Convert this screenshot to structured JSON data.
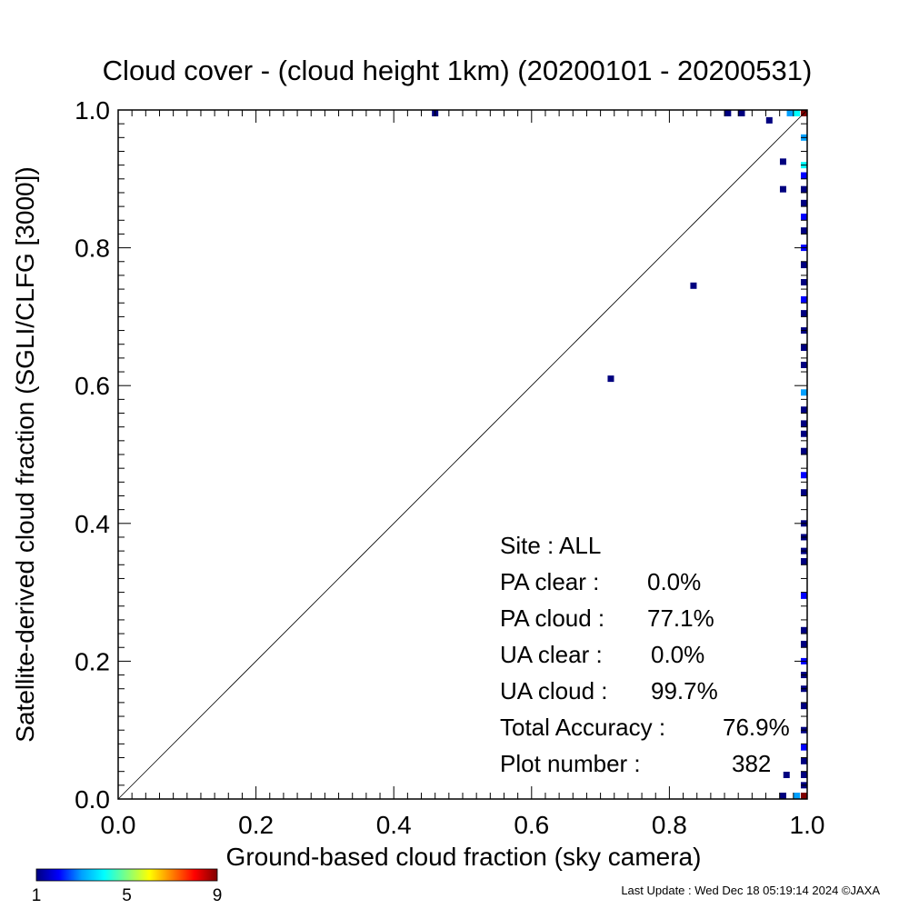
{
  "chart_data": {
    "type": "scatter",
    "title": "Cloud cover - (cloud height 1km)  (20200101 - 20200531)",
    "xlabel": "Ground-based cloud fraction (sky camera)",
    "ylabel": "Satellite-derived cloud fraction (SGLI/CLFG [3000])",
    "xlim": [
      0.0,
      1.0
    ],
    "ylim": [
      0.0,
      1.0
    ],
    "x_ticks": [
      "0.0",
      "0.2",
      "0.4",
      "0.6",
      "0.8",
      "1.0"
    ],
    "y_ticks": [
      "0.0",
      "0.2",
      "0.4",
      "0.6",
      "0.8",
      "1.0"
    ],
    "grid": false,
    "one_to_one_line": true,
    "colorbar": {
      "min": 1,
      "max": 9,
      "tick_labels": [
        "1",
        "5",
        "9"
      ],
      "colors": [
        "#00007f",
        "#0000ff",
        "#00a0ff",
        "#00ffff",
        "#80ff80",
        "#ffff00",
        "#ff8000",
        "#ff0000",
        "#7f0000"
      ]
    },
    "points": [
      {
        "x": 0.46,
        "y": 1.0,
        "count": 1
      },
      {
        "x": 0.885,
        "y": 1.0,
        "count": 1
      },
      {
        "x": 0.905,
        "y": 1.0,
        "count": 1
      },
      {
        "x": 0.945,
        "y": 0.985,
        "count": 1
      },
      {
        "x": 0.965,
        "y": 0.925,
        "count": 1
      },
      {
        "x": 0.965,
        "y": 0.885,
        "count": 1
      },
      {
        "x": 0.835,
        "y": 0.745,
        "count": 1
      },
      {
        "x": 0.715,
        "y": 0.61,
        "count": 1
      },
      {
        "x": 0.975,
        "y": 1.0,
        "count": 3
      },
      {
        "x": 0.985,
        "y": 1.0,
        "count": 4
      },
      {
        "x": 0.97,
        "y": 0.035,
        "count": 1
      },
      {
        "x": 0.965,
        "y": 0.0,
        "count": 1
      },
      {
        "x": 0.985,
        "y": 0.0,
        "count": 3
      },
      {
        "x": 1.0,
        "y": 1.0,
        "count": 9
      },
      {
        "x": 1.0,
        "y": 0.0,
        "count": 9
      },
      {
        "x": 1.0,
        "y": 0.96,
        "count": 3
      },
      {
        "x": 1.0,
        "y": 0.92,
        "count": 4
      },
      {
        "x": 1.0,
        "y": 0.905,
        "count": 2
      },
      {
        "x": 1.0,
        "y": 0.885,
        "count": 1
      },
      {
        "x": 1.0,
        "y": 0.865,
        "count": 1
      },
      {
        "x": 1.0,
        "y": 0.845,
        "count": 2
      },
      {
        "x": 1.0,
        "y": 0.825,
        "count": 1
      },
      {
        "x": 1.0,
        "y": 0.8,
        "count": 2
      },
      {
        "x": 1.0,
        "y": 0.775,
        "count": 1
      },
      {
        "x": 1.0,
        "y": 0.75,
        "count": 1
      },
      {
        "x": 1.0,
        "y": 0.725,
        "count": 2
      },
      {
        "x": 1.0,
        "y": 0.705,
        "count": 1
      },
      {
        "x": 1.0,
        "y": 0.68,
        "count": 1
      },
      {
        "x": 1.0,
        "y": 0.655,
        "count": 1
      },
      {
        "x": 1.0,
        "y": 0.63,
        "count": 1
      },
      {
        "x": 1.0,
        "y": 0.59,
        "count": 3
      },
      {
        "x": 1.0,
        "y": 0.565,
        "count": 1
      },
      {
        "x": 1.0,
        "y": 0.545,
        "count": 1
      },
      {
        "x": 1.0,
        "y": 0.53,
        "count": 1
      },
      {
        "x": 1.0,
        "y": 0.505,
        "count": 1
      },
      {
        "x": 1.0,
        "y": 0.47,
        "count": 2
      },
      {
        "x": 1.0,
        "y": 0.445,
        "count": 1
      },
      {
        "x": 1.0,
        "y": 0.4,
        "count": 1
      },
      {
        "x": 1.0,
        "y": 0.38,
        "count": 1
      },
      {
        "x": 1.0,
        "y": 0.36,
        "count": 1
      },
      {
        "x": 1.0,
        "y": 0.345,
        "count": 1
      },
      {
        "x": 1.0,
        "y": 0.295,
        "count": 2
      },
      {
        "x": 1.0,
        "y": 0.245,
        "count": 1
      },
      {
        "x": 1.0,
        "y": 0.225,
        "count": 1
      },
      {
        "x": 1.0,
        "y": 0.2,
        "count": 2
      },
      {
        "x": 1.0,
        "y": 0.18,
        "count": 1
      },
      {
        "x": 1.0,
        "y": 0.16,
        "count": 1
      },
      {
        "x": 1.0,
        "y": 0.135,
        "count": 1
      },
      {
        "x": 1.0,
        "y": 0.1,
        "count": 1
      },
      {
        "x": 1.0,
        "y": 0.075,
        "count": 2
      },
      {
        "x": 1.0,
        "y": 0.055,
        "count": 1
      },
      {
        "x": 1.0,
        "y": 0.035,
        "count": 1
      },
      {
        "x": 1.0,
        "y": 0.02,
        "count": 1
      }
    ]
  },
  "stats": [
    {
      "label": "Site : ALL",
      "value": ""
    },
    {
      "label": "PA clear :",
      "value": "0.0%"
    },
    {
      "label": "PA cloud :",
      "value": "77.1%"
    },
    {
      "label": "UA clear :",
      "value": "0.0%"
    },
    {
      "label": "UA cloud :",
      "value": "99.7%"
    },
    {
      "label": "Total Accuracy :",
      "value": "76.9%"
    },
    {
      "label": "Plot number :",
      "value": "382"
    }
  ],
  "footer": "Last Update : Wed Dec 18 05:19:14 2024  ©JAXA"
}
